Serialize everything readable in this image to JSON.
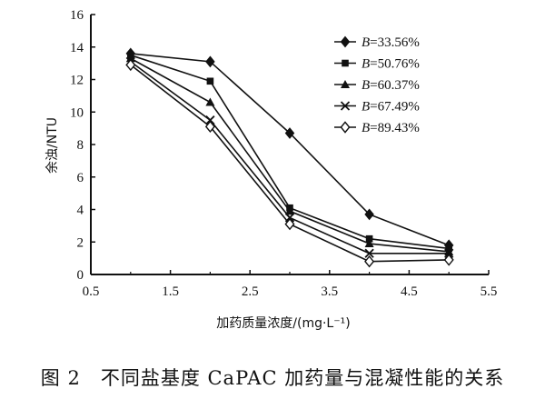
{
  "chart_data": {
    "type": "line",
    "title": "",
    "xlabel": "加药质量浓度/(mg·L⁻¹)",
    "ylabel": "余浊/NTU",
    "xlim": [
      0.5,
      5.5
    ],
    "ylim": [
      0,
      16
    ],
    "x_ticks": [
      "0.5",
      "1.5",
      "2.5",
      "3.5",
      "4.5",
      "5.5"
    ],
    "y_ticks": [
      "0",
      "2",
      "4",
      "6",
      "8",
      "10",
      "12",
      "14",
      "16"
    ],
    "legend_position": "top-right",
    "x": [
      1,
      2,
      3,
      4,
      5
    ],
    "series": [
      {
        "name": "B=33.56%",
        "label_var": "B",
        "label_val": "=33.56%",
        "marker": "diamond-filled",
        "values": [
          13.6,
          13.1,
          8.7,
          3.7,
          1.8
        ]
      },
      {
        "name": "B=50.76%",
        "label_var": "B",
        "label_val": "=50.76%",
        "marker": "square-filled",
        "values": [
          13.5,
          11.9,
          4.1,
          2.2,
          1.6
        ]
      },
      {
        "name": "B=60.37%",
        "label_var": "B",
        "label_val": "=60.37%",
        "marker": "triangle-filled",
        "values": [
          13.3,
          10.6,
          3.9,
          1.9,
          1.4
        ]
      },
      {
        "name": "B=67.49%",
        "label_var": "B",
        "label_val": "=67.49%",
        "marker": "x-cross",
        "values": [
          13.1,
          9.5,
          3.5,
          1.3,
          1.3
        ]
      },
      {
        "name": "B=89.43%",
        "label_var": "B",
        "label_val": "=89.43%",
        "marker": "diamond-open",
        "values": [
          12.9,
          9.1,
          3.1,
          0.8,
          0.9
        ]
      }
    ]
  },
  "caption": "图 2　不同盐基度 CaPAC 加药量与混凝性能的关系"
}
